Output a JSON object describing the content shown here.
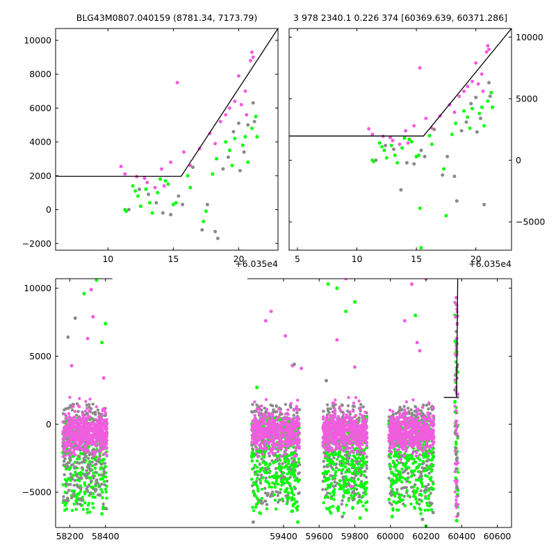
{
  "figure": {
    "background": "#ffffff",
    "colors": {
      "magenta": "#f15ddf",
      "green": "#00ff00",
      "gray": "#8a8a8a",
      "model": "#000000"
    }
  },
  "chart_data": [
    {
      "panel": "top-left",
      "type": "scatter",
      "title": "BLG43M0807.040159 (8781.34, 7173.79)",
      "xlabel": "",
      "ylabel": "",
      "xlim": [
        6.0,
        23.0
      ],
      "ylim": [
        -2400,
        10700
      ],
      "x_offset_label": "+6.035e4",
      "xticks": [
        10,
        15,
        20
      ],
      "yticks": [
        -2000,
        0,
        2000,
        4000,
        6000,
        8000,
        10000
      ],
      "ytick_side": "left",
      "model_line": {
        "x": [
          6.0,
          15.6,
          23.0
        ],
        "y": [
          1970,
          1970,
          10700
        ]
      },
      "series": [
        {
          "color": "magenta",
          "points": [
            [
              11.0,
              2550
            ],
            [
              11.3,
              2100
            ],
            [
              12.2,
              1950
            ],
            [
              12.8,
              1850
            ],
            [
              13.0,
              1600
            ],
            [
              13.6,
              1300
            ],
            [
              14.1,
              2400
            ],
            [
              14.3,
              1400
            ],
            [
              14.8,
              2800
            ],
            [
              15.3,
              7500
            ],
            [
              15.8,
              3400
            ],
            [
              16.3,
              2600
            ],
            [
              17.0,
              3600
            ],
            [
              17.8,
              4500
            ],
            [
              18.2,
              3900
            ],
            [
              18.6,
              5200
            ],
            [
              19.0,
              5600
            ],
            [
              19.3,
              6000
            ],
            [
              19.7,
              6400
            ],
            [
              20.0,
              7900
            ],
            [
              20.2,
              6200
            ],
            [
              20.5,
              7000
            ],
            [
              20.6,
              5600
            ],
            [
              20.9,
              8800
            ],
            [
              21.0,
              9300
            ],
            [
              21.1,
              9000
            ]
          ]
        },
        {
          "color": "green",
          "points": [
            [
              11.3,
              0
            ],
            [
              11.4,
              -100
            ],
            [
              11.9,
              1400
            ],
            [
              12.1,
              1100
            ],
            [
              12.3,
              800
            ],
            [
              12.5,
              200
            ],
            [
              12.9,
              1200
            ],
            [
              13.2,
              400
            ],
            [
              13.4,
              -200
            ],
            [
              13.8,
              1000
            ],
            [
              14.0,
              1800
            ],
            [
              14.4,
              1700
            ],
            [
              14.6,
              1500
            ],
            [
              15.0,
              300
            ],
            [
              15.2,
              400
            ],
            [
              16.1,
              2000
            ],
            [
              16.3,
              1300
            ],
            [
              17.3,
              -700
            ],
            [
              17.5,
              -100
            ],
            [
              18.0,
              2100
            ],
            [
              18.3,
              3000
            ],
            [
              19.0,
              4000
            ],
            [
              19.3,
              3500
            ],
            [
              19.5,
              2600
            ],
            [
              19.7,
              4200
            ],
            [
              20.3,
              3800
            ],
            [
              20.5,
              4300
            ],
            [
              20.7,
              2800
            ],
            [
              21.0,
              4800
            ],
            [
              21.3,
              5500
            ],
            [
              21.4,
              4300
            ]
          ]
        },
        {
          "color": "gray",
          "points": [
            [
              11.6,
              0
            ],
            [
              12.4,
              1200
            ],
            [
              13.1,
              900
            ],
            [
              13.7,
              400
            ],
            [
              14.2,
              -200
            ],
            [
              14.8,
              -300
            ],
            [
              15.4,
              800
            ],
            [
              15.7,
              300
            ],
            [
              16.5,
              2500
            ],
            [
              17.2,
              -1200
            ],
            [
              17.6,
              300
            ],
            [
              18.2,
              -1300
            ],
            [
              18.4,
              -1700
            ],
            [
              18.8,
              2400
            ],
            [
              19.2,
              3100
            ],
            [
              19.6,
              4600
            ],
            [
              20.0,
              5100
            ],
            [
              20.1,
              2300
            ],
            [
              20.4,
              3400
            ],
            [
              20.7,
              5000
            ],
            [
              21.1,
              6300
            ],
            [
              21.2,
              5200
            ]
          ]
        }
      ]
    },
    {
      "panel": "top-right",
      "type": "scatter",
      "title": "3 978 2340.1 0.226 374 [60369.639, 60371.286]",
      "xlabel": "",
      "ylabel": "",
      "xlim": [
        4.3,
        23.0
      ],
      "ylim": [
        -7300,
        10700
      ],
      "x_offset_label": "+6.035e4",
      "xticks": [
        5,
        10,
        15,
        20
      ],
      "yticks": [
        -5000,
        0,
        5000,
        10000
      ],
      "ytick_side": "right",
      "model_line": {
        "x": [
          4.3,
          15.6,
          23.0
        ],
        "y": [
          1970,
          1970,
          10700
        ]
      },
      "series": [
        {
          "color": "magenta",
          "points": [
            [
              11.0,
              2550
            ],
            [
              11.3,
              2100
            ],
            [
              12.2,
              1950
            ],
            [
              12.8,
              1850
            ],
            [
              13.0,
              1600
            ],
            [
              13.6,
              1300
            ],
            [
              14.1,
              2400
            ],
            [
              14.3,
              1400
            ],
            [
              14.8,
              2800
            ],
            [
              15.3,
              7500
            ],
            [
              15.8,
              3400
            ],
            [
              16.3,
              2600
            ],
            [
              17.0,
              3600
            ],
            [
              17.8,
              4500
            ],
            [
              18.2,
              3900
            ],
            [
              18.6,
              5200
            ],
            [
              19.0,
              5600
            ],
            [
              19.3,
              6000
            ],
            [
              19.7,
              6400
            ],
            [
              20.0,
              7900
            ],
            [
              20.2,
              6200
            ],
            [
              20.5,
              7000
            ],
            [
              20.6,
              5600
            ],
            [
              20.9,
              8800
            ],
            [
              21.0,
              9300
            ],
            [
              21.1,
              9000
            ]
          ]
        },
        {
          "color": "green",
          "points": [
            [
              11.3,
              0
            ],
            [
              11.4,
              -100
            ],
            [
              11.9,
              1400
            ],
            [
              12.1,
              1100
            ],
            [
              12.3,
              800
            ],
            [
              12.5,
              200
            ],
            [
              12.9,
              1200
            ],
            [
              13.2,
              400
            ],
            [
              13.4,
              -200
            ],
            [
              13.8,
              1000
            ],
            [
              14.0,
              1800
            ],
            [
              14.4,
              1700
            ],
            [
              14.6,
              1500
            ],
            [
              15.0,
              300
            ],
            [
              15.2,
              400
            ],
            [
              15.3,
              -3900
            ],
            [
              15.4,
              -7100
            ],
            [
              16.1,
              2000
            ],
            [
              16.3,
              1300
            ],
            [
              17.3,
              -700
            ],
            [
              17.5,
              -4500
            ],
            [
              18.0,
              2100
            ],
            [
              18.3,
              3000
            ],
            [
              19.0,
              4000
            ],
            [
              19.3,
              3500
            ],
            [
              19.5,
              2600
            ],
            [
              19.7,
              4200
            ],
            [
              20.3,
              3800
            ],
            [
              20.5,
              4300
            ],
            [
              20.7,
              2800
            ],
            [
              21.0,
              4800
            ],
            [
              21.3,
              5500
            ],
            [
              21.4,
              4300
            ]
          ]
        },
        {
          "color": "gray",
          "points": [
            [
              11.6,
              0
            ],
            [
              12.4,
              1200
            ],
            [
              13.1,
              900
            ],
            [
              13.7,
              -2400
            ],
            [
              14.2,
              -200
            ],
            [
              14.8,
              -300
            ],
            [
              15.4,
              800
            ],
            [
              15.7,
              300
            ],
            [
              16.5,
              2500
            ],
            [
              17.2,
              -1200
            ],
            [
              17.6,
              300
            ],
            [
              18.2,
              -1300
            ],
            [
              18.4,
              -3300
            ],
            [
              18.8,
              2400
            ],
            [
              19.2,
              3100
            ],
            [
              19.6,
              4600
            ],
            [
              20.0,
              5100
            ],
            [
              20.1,
              2300
            ],
            [
              20.4,
              3400
            ],
            [
              20.7,
              -3600
            ],
            [
              21.1,
              6300
            ],
            [
              21.2,
              5200
            ]
          ]
        }
      ]
    },
    {
      "panel": "bottom",
      "type": "scatter",
      "title": "",
      "xlabel": "",
      "ylabel": "",
      "broken_x_axis": true,
      "xlim": [
        58120,
        60680
      ],
      "ylim": [
        -7600,
        10700
      ],
      "xticks": [
        58200,
        58400,
        59400,
        59600,
        59800,
        60000,
        60200,
        60400,
        60600
      ],
      "yticks": [
        -5000,
        0,
        5000,
        10000
      ],
      "ytick_side": "left",
      "model_line": {
        "x": [
          60300,
          60371,
          60372,
          60378
        ],
        "y": [
          1970,
          1970,
          3000,
          10700
        ]
      },
      "season_clusters": [
        {
          "x_range": [
            58160,
            58410
          ],
          "color_order": [
            "green",
            "gray",
            "magenta"
          ]
        },
        {
          "x_range": [
            59220,
            59490
          ],
          "color_order": [
            "gray",
            "green",
            "magenta"
          ]
        },
        {
          "x_range": [
            59620,
            59870
          ],
          "color_order": [
            "gray",
            "green",
            "magenta"
          ]
        },
        {
          "x_range": [
            59990,
            60245
          ],
          "color_order": [
            "gray",
            "green",
            "magenta"
          ]
        },
        {
          "x_range": [
            60360,
            60380
          ],
          "color_order": [
            "green",
            "gray",
            "magenta"
          ]
        }
      ],
      "series": [
        {
          "color": "magenta",
          "core_y": [
            -2000,
            1200
          ],
          "outlier_points": [
            [
              58300,
              6300
            ],
            [
              58320,
              9900
            ],
            [
              58330,
              7900
            ],
            [
              58210,
              4300
            ],
            [
              58390,
              3400
            ],
            [
              59410,
              6500
            ],
            [
              59450,
              4300
            ],
            [
              59500,
              4100
            ],
            [
              59300,
              7600
            ],
            [
              59330,
              8300
            ],
            [
              59700,
              6200
            ],
            [
              59750,
              10700
            ],
            [
              59800,
              4200
            ],
            [
              59780,
              -4600
            ],
            [
              60150,
              6000
            ],
            [
              60200,
              10700
            ],
            [
              60080,
              7600
            ],
            [
              60120,
              10300
            ],
            [
              60165,
              5400
            ],
            [
              60370,
              9300
            ],
            [
              60371,
              8800
            ],
            [
              60372,
              6300
            ]
          ]
        },
        {
          "color": "green",
          "core_y": [
            -6600,
            500
          ],
          "outlier_points": [
            [
              58240,
              -5400
            ],
            [
              58380,
              -6600
            ],
            [
              58280,
              9600
            ],
            [
              58350,
              10600
            ],
            [
              58380,
              6000
            ],
            [
              58400,
              7400
            ],
            [
              59250,
              2700
            ],
            [
              59450,
              -6400
            ],
            [
              59480,
              -7200
            ],
            [
              59650,
              10300
            ],
            [
              59700,
              10000
            ],
            [
              59750,
              8300
            ],
            [
              59800,
              9000
            ],
            [
              59830,
              -6900
            ],
            [
              60010,
              -6800
            ],
            [
              60050,
              -5400
            ],
            [
              60140,
              8000
            ],
            [
              60200,
              -7500
            ],
            [
              60230,
              -6300
            ],
            [
              60371,
              5300
            ],
            [
              60372,
              -7100
            ]
          ]
        },
        {
          "color": "gray",
          "core_y": [
            -6000,
            1500
          ],
          "outlier_points": [
            [
              58190,
              6400
            ],
            [
              58230,
              7800
            ],
            [
              58400,
              -6200
            ],
            [
              59230,
              -7200
            ],
            [
              59280,
              -5800
            ],
            [
              59460,
              4400
            ],
            [
              59640,
              3200
            ],
            [
              59730,
              -6800
            ],
            [
              60000,
              -5100
            ],
            [
              60180,
              -7000
            ],
            [
              60240,
              -6500
            ],
            [
              60370,
              -3300
            ],
            [
              60372,
              -2600
            ]
          ]
        }
      ]
    }
  ]
}
